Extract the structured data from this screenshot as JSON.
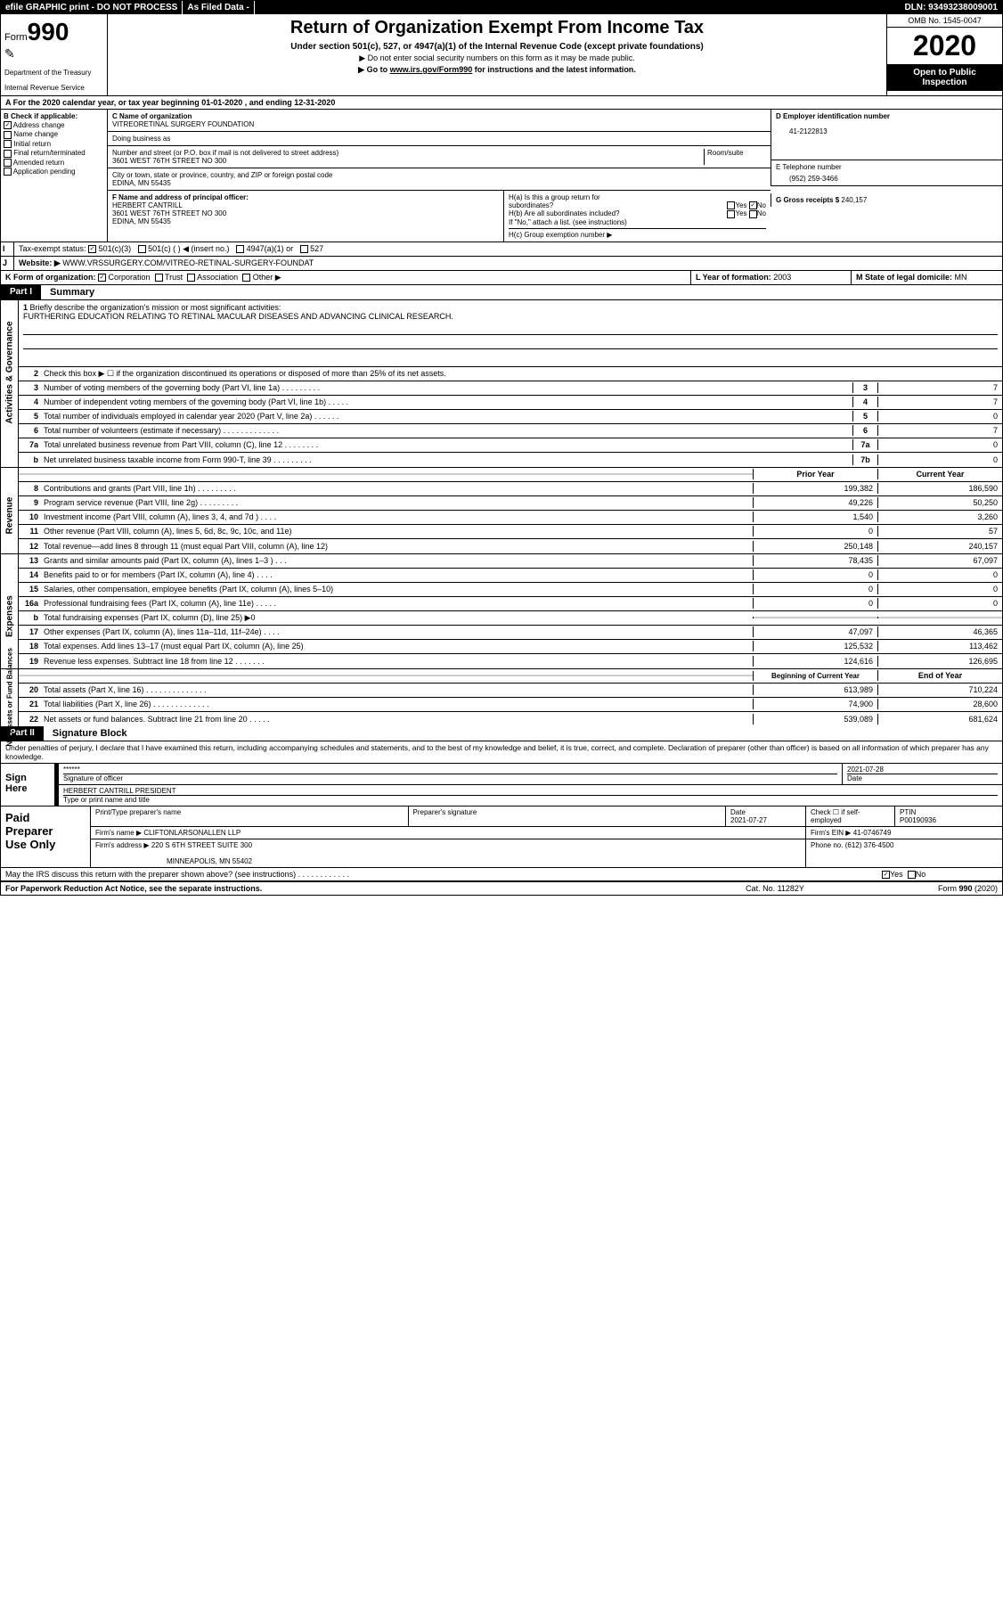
{
  "topbar": {
    "efile": "efile GRAPHIC print - DO NOT PROCESS",
    "asfiled": "As Filed Data -",
    "dln": "DLN: 93493238009001"
  },
  "header": {
    "form_label": "Form",
    "form_num": "990",
    "dept": "Department of the Treasury",
    "irs": "Internal Revenue Service",
    "title": "Return of Organization Exempt From Income Tax",
    "subtitle": "Under section 501(c), 527, or 4947(a)(1) of the Internal Revenue Code (except private foundations)",
    "note1": "▶ Do not enter social security numbers on this form as it may be made public.",
    "note2_pre": "▶ Go to ",
    "note2_link": "www.irs.gov/Form990",
    "note2_post": " for instructions and the latest information.",
    "omb": "OMB No. 1545-0047",
    "year": "2020",
    "inspect": "Open to Public Inspection"
  },
  "row_a": "A   For the 2020 calendar year, or tax year beginning 01-01-2020   , and ending 12-31-2020",
  "b": {
    "label": "B Check if applicable:",
    "items": [
      "Address change",
      "Name change",
      "Initial return",
      "Final return/terminated",
      "Amended return",
      "Application pending"
    ],
    "checked": [
      true,
      false,
      false,
      false,
      false,
      false
    ]
  },
  "c": {
    "name_label": "C Name of organization",
    "name": "VITREORETINAL SURGERY FOUNDATION",
    "dba_label": "Doing business as",
    "dba": "",
    "street_label": "Number and street (or P.O. box if mail is not delivered to street address)",
    "room_label": "Room/suite",
    "street": "3601 WEST 76TH STREET NO 300",
    "city_label": "City or town, state or province, country, and ZIP or foreign postal code",
    "city": "EDINA, MN  55435"
  },
  "d": {
    "label": "D Employer identification number",
    "value": "41-2122813"
  },
  "e": {
    "label": "E Telephone number",
    "value": "(952) 259-3466"
  },
  "g": {
    "label": "G Gross receipts $",
    "value": "240,157"
  },
  "f": {
    "label": "F  Name and address of principal officer:",
    "name": "HERBERT CANTRILL",
    "street": "3601 WEST 76TH STREET NO 300",
    "city": "EDINA, MN  55435"
  },
  "h": {
    "a_label": "H(a)  Is this a group return for",
    "a_label2": "subordinates?",
    "a_yes": "Yes",
    "a_no": "No",
    "b_label": "H(b) Are all subordinates included?",
    "b_yes": "Yes",
    "b_no": "No",
    "note": "If \"No,\" attach a list. (see instructions)",
    "c_label": "H(c)  Group exemption number ▶"
  },
  "i": {
    "label": "Tax-exempt status:",
    "opt1": "501(c)(3)",
    "opt2": "501(c) (   ) ◀ (insert no.)",
    "opt3": "4947(a)(1) or",
    "opt4": "527"
  },
  "j": {
    "label": "Website: ▶",
    "value": "WWW.VRSSURGERY.COM/VITREO-RETINAL-SURGERY-FOUNDAT"
  },
  "k": {
    "label": "K Form of organization:",
    "opts": [
      "Corporation",
      "Trust",
      "Association",
      "Other ▶"
    ]
  },
  "l": {
    "label": "L Year of formation:",
    "value": "2003"
  },
  "m": {
    "label": "M State of legal domicile:",
    "value": "MN"
  },
  "part1": {
    "tag": "Part I",
    "title": "Summary"
  },
  "mission": {
    "num": "1",
    "label": "Briefly describe the organization's mission or most significant activities:",
    "text": "FURTHERING EDUCATION RELATING TO RETINAL MACULAR DISEASES AND ADVANCING CLINICAL RESEARCH."
  },
  "line2": {
    "num": "2",
    "text": "Check this box ▶ ☐ if the organization discontinued its operations or disposed of more than 25% of its net assets."
  },
  "gov_rows": [
    {
      "num": "3",
      "desc": "Number of voting members of the governing body (Part VI, line 1a)  .   .   .   .   .   .   .   .   .",
      "box": "3",
      "val": "7"
    },
    {
      "num": "4",
      "desc": "Number of independent voting members of the governing body (Part VI, line 1b)   .   .   .   .   .",
      "box": "4",
      "val": "7"
    },
    {
      "num": "5",
      "desc": "Total number of individuals employed in calendar year 2020 (Part V, line 2a)   .   .   .   .   .   .",
      "box": "5",
      "val": "0"
    },
    {
      "num": "6",
      "desc": "Total number of volunteers (estimate if necessary)   .   .   .   .   .   .   .   .   .   .   .   .   .",
      "box": "6",
      "val": "7"
    },
    {
      "num": "7a",
      "desc": "Total unrelated business revenue from Part VIII, column (C), line 12   .   .   .   .   .   .   .   .",
      "box": "7a",
      "val": "0"
    },
    {
      "num": "b",
      "desc": "Net unrelated business taxable income from Form 990-T, line 39   .   .   .   .   .   .   .   .   .",
      "box": "7b",
      "val": "0"
    }
  ],
  "year_hdr": {
    "prior": "Prior Year",
    "current": "Current Year"
  },
  "rev_rows": [
    {
      "num": "8",
      "desc": "Contributions and grants (Part VIII, line 1h)   .   .   .   .   .   .   .   .   .",
      "prior": "199,382",
      "curr": "186,590"
    },
    {
      "num": "9",
      "desc": "Program service revenue (Part VIII, line 2g)   .   .   .   .   .   .   .   .   .",
      "prior": "49,226",
      "curr": "50,250"
    },
    {
      "num": "10",
      "desc": "Investment income (Part VIII, column (A), lines 3, 4, and 7d )   .   .   .   .",
      "prior": "1,540",
      "curr": "3,260"
    },
    {
      "num": "11",
      "desc": "Other revenue (Part VIII, column (A), lines 5, 6d, 8c, 9c, 10c, and 11e)",
      "prior": "0",
      "curr": "57"
    },
    {
      "num": "12",
      "desc": "Total revenue—add lines 8 through 11 (must equal Part VIII, column (A), line 12)",
      "prior": "250,148",
      "curr": "240,157"
    }
  ],
  "exp_rows": [
    {
      "num": "13",
      "desc": "Grants and similar amounts paid (Part IX, column (A), lines 1–3 )   .   .   .",
      "prior": "78,435",
      "curr": "67,097"
    },
    {
      "num": "14",
      "desc": "Benefits paid to or for members (Part IX, column (A), line 4)   .   .   .   .",
      "prior": "0",
      "curr": "0"
    },
    {
      "num": "15",
      "desc": "Salaries, other compensation, employee benefits (Part IX, column (A), lines 5–10)",
      "prior": "0",
      "curr": "0"
    },
    {
      "num": "16a",
      "desc": "Professional fundraising fees (Part IX, column (A), line 11e)   .   .   .   .   .",
      "prior": "0",
      "curr": "0"
    },
    {
      "num": "b",
      "desc": "Total fundraising expenses (Part IX, column (D), line 25) ▶0",
      "prior": "",
      "curr": "",
      "grey": true
    },
    {
      "num": "17",
      "desc": "Other expenses (Part IX, column (A), lines 11a–11d, 11f–24e)   .   .   .   .",
      "prior": "47,097",
      "curr": "46,365"
    },
    {
      "num": "18",
      "desc": "Total expenses. Add lines 13–17 (must equal Part IX, column (A), line 25)",
      "prior": "125,532",
      "curr": "113,462"
    },
    {
      "num": "19",
      "desc": "Revenue less expenses. Subtract line 18 from line 12   .   .   .   .   .   .   .",
      "prior": "124,616",
      "curr": "126,695"
    }
  ],
  "bal_hdr": {
    "begin": "Beginning of Current Year",
    "end": "End of Year"
  },
  "bal_rows": [
    {
      "num": "20",
      "desc": "Total assets (Part X, line 16)   .   .   .   .   .   .   .   .   .   .   .   .   .   .",
      "prior": "613,989",
      "curr": "710,224"
    },
    {
      "num": "21",
      "desc": "Total liabilities (Part X, line 26)   .   .   .   .   .   .   .   .   .   .   .   .   .",
      "prior": "74,900",
      "curr": "28,600"
    },
    {
      "num": "22",
      "desc": "Net assets or fund balances. Subtract line 21 from line 20   .   .   .   .   .",
      "prior": "539,089",
      "curr": "681,624"
    }
  ],
  "part2": {
    "tag": "Part II",
    "title": "Signature Block"
  },
  "penalty": "Under penalties of perjury, I declare that I have examined this return, including accompanying schedules and statements, and to the best of my knowledge and belief, it is true, correct, and complete. Declaration of preparer (other than officer) is based on all information of which preparer has any knowledge.",
  "sign": {
    "left": "Sign Here",
    "stars": "******",
    "sig_label": "Signature of officer",
    "date": "2021-07-28",
    "date_label": "Date",
    "name": "HERBERT CANTRILL  PRESIDENT",
    "name_label": "Type or print name and title"
  },
  "prep": {
    "left1": "Paid",
    "left2": "Preparer",
    "left3": "Use Only",
    "r1c1_label": "Print/Type preparer's name",
    "r1c1": "",
    "r1c2_label": "Preparer's signature",
    "r1c2": "",
    "r1c3_label": "Date",
    "r1c3": "2021-07-27",
    "r1c4_label": "Check ☐ if self-employed",
    "r1c5_label": "PTIN",
    "r1c5": "P00190936",
    "r2_label": "Firm's name     ▶",
    "r2_val": "CLIFTONLARSONALLEN LLP",
    "r2b_label": "Firm's EIN ▶",
    "r2b_val": "41-0746749",
    "r3_label": "Firm's address ▶",
    "r3_val": "220 S 6TH STREET SUITE 300",
    "r3b": "MINNEAPOLIS, MN  55402",
    "r3c_label": "Phone no.",
    "r3c_val": "(612) 376-4500"
  },
  "discuss": {
    "text": "May the IRS discuss this return with the preparer shown above? (see instructions)   .   .   .   .   .   .   .   .   .   .   .   .",
    "yes": "Yes",
    "no": "No"
  },
  "footer": {
    "l": "For Paperwork Reduction Act Notice, see the separate instructions.",
    "c": "Cat. No. 11282Y",
    "r": "Form 990 (2020)"
  },
  "vlabels": {
    "gov": "Activities & Governance",
    "rev": "Revenue",
    "exp": "Expenses",
    "bal": "Net Assets or Fund Balances"
  }
}
